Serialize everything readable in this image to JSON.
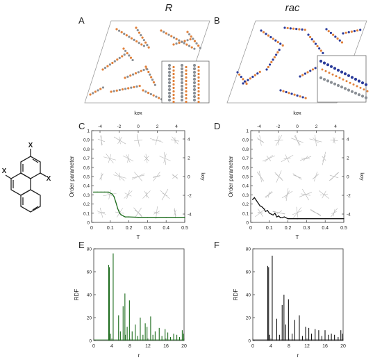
{
  "column_titles": {
    "left": "R",
    "right": "rac"
  },
  "panel_letters": {
    "A": "A",
    "B": "B",
    "C": "C",
    "D": "D",
    "E": "E",
    "F": "F"
  },
  "molecule": {
    "substituent": "X"
  },
  "colors": {
    "green_series": "#1a6b1a",
    "black_series": "#111111",
    "orange_atom": "#e0803a",
    "blue_atom": "#2a3a9a",
    "grey_atom": "#8a8f95"
  },
  "chart_data": [
    {
      "id": "C",
      "type": "line",
      "xlabel": "T",
      "ylabel": "Order parameter",
      "xlim": [
        0,
        0.5
      ],
      "ylim": [
        0,
        1
      ],
      "x_ticks": [
        "0",
        "0.1",
        "0.2",
        "0.3",
        "0.4",
        "0.5"
      ],
      "y_ticks": [
        "0",
        "0.1",
        "0.2",
        "0.3",
        "0.4",
        "0.5",
        "0.6",
        "0.7",
        "0.8",
        "0.9",
        "1"
      ],
      "top_axis": {
        "label": "kσx",
        "ticks": [
          "-4",
          "-2",
          "0",
          "2",
          "4"
        ]
      },
      "right_axis": {
        "label": "kσy",
        "ticks": [
          "4",
          "2",
          "0",
          "-2",
          "-4"
        ]
      },
      "series": [
        {
          "color": "#1a6b1a",
          "x": [
            0.01,
            0.03,
            0.05,
            0.07,
            0.09,
            0.1,
            0.11,
            0.12,
            0.13,
            0.14,
            0.15,
            0.16,
            0.17,
            0.18,
            0.2,
            0.25,
            0.3,
            0.35,
            0.4,
            0.45,
            0.5
          ],
          "y": [
            0.33,
            0.33,
            0.33,
            0.33,
            0.33,
            0.32,
            0.31,
            0.28,
            0.22,
            0.15,
            0.1,
            0.08,
            0.07,
            0.06,
            0.06,
            0.055,
            0.055,
            0.055,
            0.055,
            0.055,
            0.055
          ]
        }
      ]
    },
    {
      "id": "D",
      "type": "line",
      "xlabel": "T",
      "ylabel": "Order parameter",
      "xlim": [
        0,
        0.5
      ],
      "ylim": [
        0,
        1
      ],
      "x_ticks": [
        "0",
        "0.1",
        "0.2",
        "0.3",
        "0.4",
        "0.5"
      ],
      "y_ticks": [
        "0",
        "0.1",
        "0.2",
        "0.3",
        "0.4",
        "0.5",
        "0.6",
        "0.7",
        "0.8",
        "0.9",
        "1"
      ],
      "top_axis": {
        "label": "kσx",
        "ticks": [
          "-4",
          "-2",
          "0",
          "2",
          "4"
        ]
      },
      "right_axis": {
        "label": "kσy",
        "ticks": [
          "4",
          "2",
          "0",
          "-2",
          "-4"
        ]
      },
      "series": [
        {
          "color": "#111111",
          "x": [
            0.01,
            0.02,
            0.03,
            0.04,
            0.05,
            0.06,
            0.07,
            0.08,
            0.09,
            0.1,
            0.11,
            0.12,
            0.13,
            0.14,
            0.15,
            0.16,
            0.17,
            0.18,
            0.2,
            0.25,
            0.3,
            0.4,
            0.5
          ],
          "y": [
            0.25,
            0.27,
            0.24,
            0.21,
            0.18,
            0.17,
            0.15,
            0.12,
            0.13,
            0.1,
            0.09,
            0.08,
            0.1,
            0.06,
            0.07,
            0.05,
            0.05,
            0.06,
            0.04,
            0.04,
            0.04,
            0.04,
            0.04
          ]
        }
      ]
    },
    {
      "id": "E",
      "type": "bar",
      "xlabel": "r",
      "ylabel": "RDF",
      "xlim": [
        0,
        20
      ],
      "ylim": [
        0,
        80
      ],
      "x_ticks": [
        "0",
        "4",
        "8",
        "12",
        "16",
        "20"
      ],
      "y_ticks": [
        "0",
        "20",
        "40",
        "60",
        "80"
      ],
      "color": "#1a6b1a",
      "x": [
        3.3,
        3.45,
        3.7,
        4.3,
        5.5,
        5.9,
        6.5,
        6.9,
        7.0,
        7.4,
        7.9,
        8.5,
        9.2,
        9.7,
        10.3,
        10.9,
        11.4,
        11.8,
        12.6,
        13.1,
        13.6,
        14.5,
        15.1,
        15.8,
        16.4,
        17.0,
        17.7,
        18.4,
        19.0,
        19.6,
        19.9
      ],
      "y": [
        66,
        64,
        6,
        76,
        22,
        8,
        30,
        41,
        5,
        12,
        35,
        8,
        14,
        4,
        20,
        5,
        15,
        12,
        21,
        5,
        8,
        11,
        4,
        10,
        7,
        3,
        6,
        5,
        3,
        9,
        6
      ]
    },
    {
      "id": "F",
      "type": "bar",
      "xlabel": "r",
      "ylabel": "RDF",
      "xlim": [
        0,
        20
      ],
      "ylim": [
        0,
        80
      ],
      "x_ticks": [
        "0",
        "4",
        "8",
        "12",
        "16",
        "20"
      ],
      "y_ticks": [
        "0",
        "20",
        "40",
        "60",
        "80"
      ],
      "color": "#111111",
      "x": [
        3.3,
        3.5,
        3.7,
        4.3,
        5.3,
        5.9,
        6.5,
        6.9,
        7.3,
        7.9,
        8.7,
        9.3,
        10.3,
        11.0,
        11.7,
        12.4,
        13.0,
        13.8,
        14.6,
        15.3,
        16.0,
        16.7,
        17.4,
        18.1,
        18.9,
        19.5,
        19.9
      ],
      "y": [
        65,
        64,
        5,
        74,
        19,
        5,
        31,
        40,
        14,
        36,
        6,
        18,
        22,
        4,
        12,
        11,
        6,
        10,
        9,
        4,
        9,
        5,
        6,
        5,
        3,
        9,
        6
      ]
    }
  ]
}
